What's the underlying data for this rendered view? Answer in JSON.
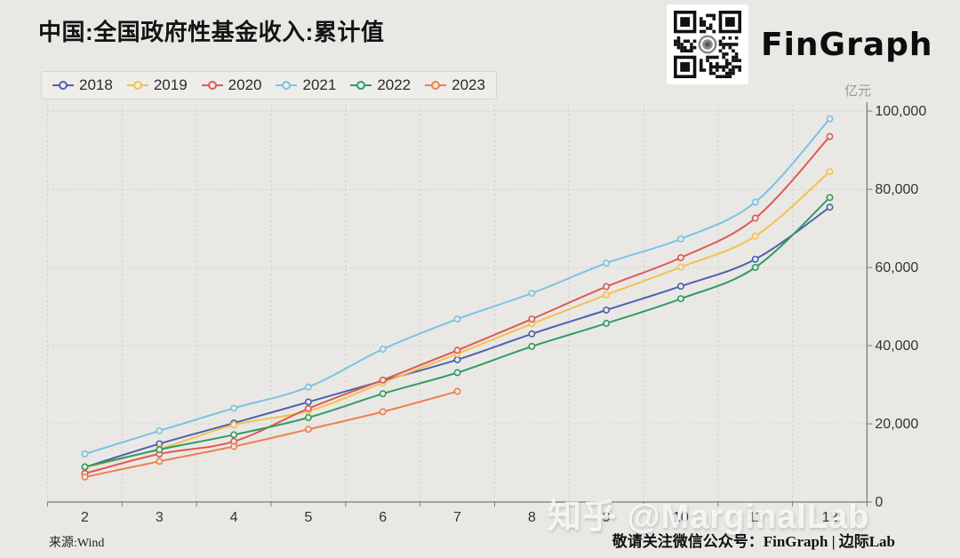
{
  "title": "中国:全国政府性基金收入:累计值",
  "brand": {
    "name": "FinGraph",
    "qr_label": "wechat-qr-code"
  },
  "y_axis_unit": "亿元",
  "watermark": "知乎 @MarginalLab",
  "footer": {
    "source": "来源:Wind",
    "wechat_prefix": "敬请关注微信公众号：",
    "wechat_name": "FinGraph | 边际Lab"
  },
  "colors": {
    "background": "#eae8e5",
    "grid": "#cfccc7",
    "axis": "#7a7a78",
    "tick_text": "#333333"
  },
  "chart_data": {
    "type": "line",
    "title": "中国:全国政府性基金收入:累计值",
    "xlabel": "",
    "ylabel": "亿元",
    "x": [
      2,
      3,
      4,
      5,
      6,
      7,
      8,
      9,
      10,
      11,
      12
    ],
    "ylim": [
      0,
      100000
    ],
    "y_ticks": [
      0,
      20000,
      40000,
      60000,
      80000,
      100000
    ],
    "grid": true,
    "legend_position": "top-left",
    "series": [
      {
        "name": "2018",
        "color": "#4d61ae",
        "values": [
          8900,
          14900,
          20200,
          25600,
          31000,
          36400,
          43000,
          49100,
          55200,
          62100,
          75405
        ]
      },
      {
        "name": "2019",
        "color": "#f2c24e",
        "values": [
          8800,
          13600,
          19700,
          23300,
          30500,
          37900,
          45600,
          53000,
          60100,
          68000,
          84516
        ]
      },
      {
        "name": "2020",
        "color": "#dd5a57",
        "values": [
          7300,
          12300,
          15500,
          23900,
          31200,
          38800,
          46800,
          55100,
          62500,
          72600,
          93489
        ]
      },
      {
        "name": "2021",
        "color": "#7ac3e2",
        "values": [
          12300,
          18200,
          24000,
          29400,
          39100,
          46800,
          53400,
          61100,
          67300,
          76700,
          98024
        ]
      },
      {
        "name": "2022",
        "color": "#2f9d62",
        "values": [
          9000,
          13400,
          17200,
          21600,
          27700,
          33100,
          39800,
          45700,
          52000,
          60000,
          77879
        ]
      },
      {
        "name": "2023",
        "color": "#ef804f",
        "values": [
          6400,
          10400,
          14200,
          18600,
          23100,
          28300,
          null,
          null,
          null,
          null,
          null
        ]
      }
    ]
  }
}
